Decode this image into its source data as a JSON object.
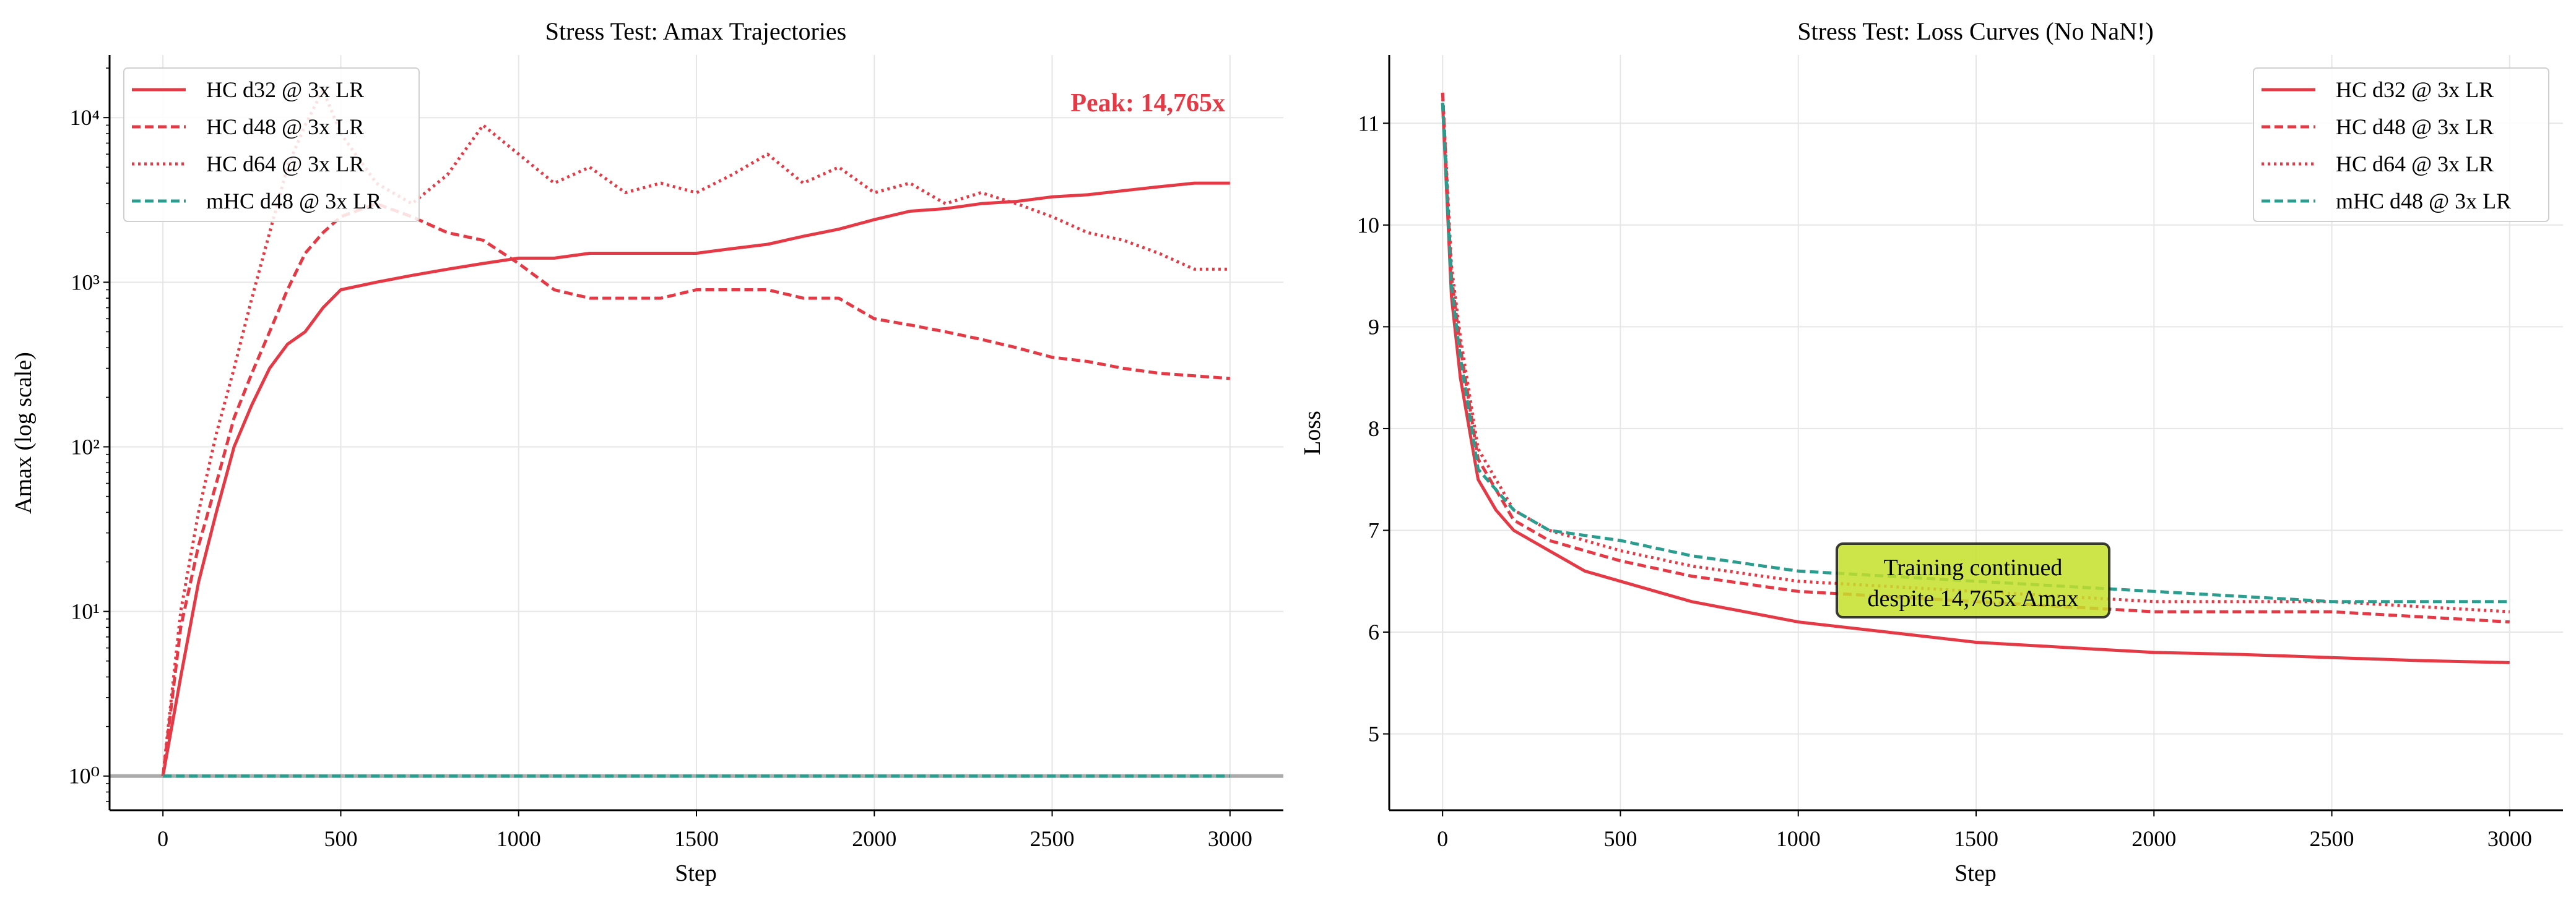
{
  "colors": {
    "hc": "#e63946",
    "mhc": "#2a9d8f",
    "annotation_bg": "#c5e02a",
    "reference_line": "#999999"
  },
  "chart_data": [
    {
      "type": "line",
      "title": "Stress Test: Amax Trajectories",
      "xlabel": "Step",
      "ylabel": "Amax (log scale)",
      "yscale": "log",
      "xlim": [
        -150,
        3150
      ],
      "ylim": [
        0.62,
        24000
      ],
      "grid": true,
      "legend_position": "upper-left",
      "xticks": [
        0,
        500,
        1000,
        1500,
        2000,
        2500,
        3000
      ],
      "xtick_labels": [
        "0",
        "500",
        "1000",
        "1500",
        "2000",
        "2500",
        "3000"
      ],
      "yticks": [
        1,
        10,
        100,
        1000,
        10000
      ],
      "ytick_labels": [
        "10⁰",
        "10¹",
        "10²",
        "10³",
        "10⁴"
      ],
      "reference_line": 1,
      "annotation": "Peak: 14,765x",
      "x": [
        0,
        50,
        100,
        150,
        200,
        250,
        300,
        350,
        400,
        450,
        500,
        600,
        700,
        800,
        900,
        1000,
        1100,
        1200,
        1300,
        1400,
        1500,
        1600,
        1700,
        1800,
        1900,
        2000,
        2100,
        2200,
        2300,
        2400,
        2500,
        2600,
        2700,
        2800,
        2900,
        3000
      ],
      "series": [
        {
          "name": "HC d32 @ 3x LR",
          "style": "solid",
          "color": "#e63946",
          "values": [
            1,
            4,
            15,
            40,
            100,
            180,
            300,
            420,
            500,
            700,
            900,
            1000,
            1100,
            1200,
            1300,
            1400,
            1400,
            1500,
            1500,
            1500,
            1500,
            1600,
            1700,
            1900,
            2100,
            2400,
            2700,
            2800,
            3000,
            3100,
            3300,
            3400,
            3600,
            3800,
            4000,
            4000
          ]
        },
        {
          "name": "HC d48 @ 3x LR",
          "style": "dashed",
          "color": "#e63946",
          "values": [
            1,
            8,
            25,
            60,
            150,
            280,
            500,
            900,
            1500,
            2000,
            2500,
            3000,
            2500,
            2000,
            1800,
            1300,
            900,
            800,
            800,
            800,
            900,
            900,
            900,
            800,
            800,
            600,
            550,
            500,
            450,
            400,
            350,
            330,
            300,
            280,
            270,
            260
          ]
        },
        {
          "name": "HC d64 @ 3x LR",
          "style": "dotted",
          "color": "#e63946",
          "values": [
            1,
            10,
            40,
            120,
            300,
            800,
            2000,
            5000,
            9000,
            14765,
            8000,
            4000,
            3000,
            4500,
            9000,
            6000,
            4000,
            5000,
            3500,
            4000,
            3500,
            4500,
            6000,
            4000,
            5000,
            3500,
            4000,
            3000,
            3500,
            3000,
            2500,
            2000,
            1800,
            1500,
            1200,
            1200
          ]
        },
        {
          "name": "mHC d48 @ 3x LR",
          "style": "dashed",
          "color": "#2a9d8f",
          "values": [
            1,
            1,
            1,
            1,
            1,
            1,
            1,
            1,
            1,
            1,
            1,
            1,
            1,
            1,
            1,
            1,
            1,
            1,
            1,
            1,
            1,
            1,
            1,
            1,
            1,
            1,
            1,
            1,
            1,
            1,
            1,
            1,
            1,
            1,
            1,
            1
          ]
        }
      ]
    },
    {
      "type": "line",
      "title": "Stress Test: Loss Curves (No NaN!)",
      "xlabel": "Step",
      "ylabel": "Loss",
      "yscale": "linear",
      "xlim": [
        -150,
        3150
      ],
      "ylim": [
        4.25,
        11.67
      ],
      "grid": true,
      "legend_position": "upper-right",
      "xticks": [
        0,
        500,
        1000,
        1500,
        2000,
        2500,
        3000
      ],
      "xtick_labels": [
        "0",
        "500",
        "1000",
        "1500",
        "2000",
        "2500",
        "3000"
      ],
      "yticks": [
        5,
        6,
        7,
        8,
        9,
        10,
        11
      ],
      "ytick_labels": [
        "5",
        "6",
        "7",
        "8",
        "9",
        "10",
        "11"
      ],
      "annotation": "Training continued\ndespite 14,765x Amax",
      "annotation_lines": [
        "Training continued",
        "despite 14,765x Amax"
      ],
      "annotation_at": {
        "step": 1500,
        "loss": 6.5
      },
      "x": [
        0,
        25,
        50,
        100,
        150,
        200,
        300,
        400,
        500,
        700,
        1000,
        1250,
        1500,
        1750,
        2000,
        2250,
        2500,
        2750,
        3000
      ],
      "series": [
        {
          "name": "HC d32 @ 3x LR",
          "style": "solid",
          "color": "#e63946",
          "values": [
            11.2,
            9.3,
            8.5,
            7.5,
            7.2,
            7.0,
            6.8,
            6.6,
            6.5,
            6.3,
            6.1,
            6.0,
            5.9,
            5.85,
            5.8,
            5.78,
            5.75,
            5.72,
            5.7
          ]
        },
        {
          "name": "HC d48 @ 3x LR",
          "style": "dashed",
          "color": "#e63946",
          "values": [
            11.3,
            9.5,
            8.8,
            7.7,
            7.4,
            7.1,
            6.9,
            6.8,
            6.7,
            6.55,
            6.4,
            6.35,
            6.3,
            6.25,
            6.2,
            6.2,
            6.2,
            6.15,
            6.1
          ]
        },
        {
          "name": "HC d64 @ 3x LR",
          "style": "dotted",
          "color": "#e63946",
          "values": [
            11.3,
            9.6,
            8.9,
            7.8,
            7.5,
            7.2,
            7.0,
            6.9,
            6.8,
            6.65,
            6.5,
            6.45,
            6.4,
            6.35,
            6.3,
            6.3,
            6.3,
            6.25,
            6.2
          ]
        },
        {
          "name": "mHC d48 @ 3x LR",
          "style": "dashed",
          "color": "#2a9d8f",
          "values": [
            11.2,
            9.4,
            8.7,
            7.6,
            7.4,
            7.2,
            7.0,
            6.95,
            6.9,
            6.75,
            6.6,
            6.55,
            6.5,
            6.45,
            6.4,
            6.35,
            6.3,
            6.3,
            6.3
          ]
        }
      ]
    }
  ]
}
